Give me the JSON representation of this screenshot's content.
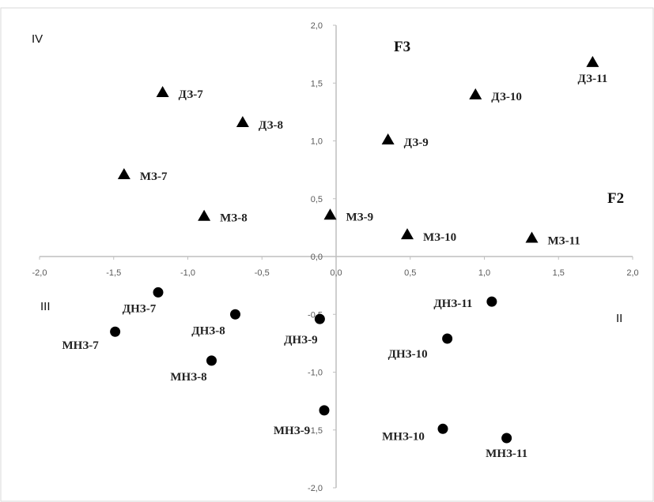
{
  "chart_data": {
    "type": "scatter",
    "title": "",
    "xlim": [
      -2.0,
      2.0
    ],
    "ylim": [
      -2.0,
      2.0
    ],
    "x_ticks": [
      "-2,0",
      "-1,5",
      "-1,0",
      "-0,5",
      "0,0",
      "0,5",
      "1,0",
      "1,5",
      "2,0"
    ],
    "y_ticks": [
      "2,0",
      "1,5",
      "1,0",
      "0,5",
      "0,0",
      "-0,5",
      "-1,0",
      "-1,5",
      "-2,0"
    ],
    "axis_names": {
      "x": "F2",
      "y": "F3"
    },
    "quadrants": [
      "IV",
      "III",
      "II"
    ],
    "grid": false,
    "colors": {
      "marker": "#000000",
      "axis": "#bfbfbf",
      "tick_text": "#595959",
      "frame": "#d9d9d9"
    },
    "series": [
      {
        "marker": "triangle",
        "points": [
          {
            "label": "ДЗ-7",
            "x": -1.17,
            "y": 1.42
          },
          {
            "label": "ДЗ-8",
            "x": -0.63,
            "y": 1.16
          },
          {
            "label": "ДЗ-9",
            "x": 0.35,
            "y": 1.01
          },
          {
            "label": "ДЗ-10",
            "x": 0.94,
            "y": 1.4
          },
          {
            "label": "ДЗ-11",
            "x": 1.73,
            "y": 1.68
          },
          {
            "label": "МЗ-7",
            "x": -1.43,
            "y": 0.71
          },
          {
            "label": "МЗ-8",
            "x": -0.89,
            "y": 0.35
          },
          {
            "label": "МЗ-9",
            "x": -0.04,
            "y": 0.36
          },
          {
            "label": "МЗ-10",
            "x": 0.48,
            "y": 0.19
          },
          {
            "label": "МЗ-11",
            "x": 1.32,
            "y": 0.16
          }
        ]
      },
      {
        "marker": "circle",
        "points": [
          {
            "label": "ДНЗ-7",
            "x": -1.2,
            "y": -0.31
          },
          {
            "label": "ДНЗ-8",
            "x": -0.68,
            "y": -0.5
          },
          {
            "label": "ДНЗ-9",
            "x": -0.11,
            "y": -0.54
          },
          {
            "label": "ДНЗ-10",
            "x": 0.75,
            "y": -0.71
          },
          {
            "label": "ДНЗ-11",
            "x": 1.05,
            "y": -0.39
          },
          {
            "label": "МНЗ-7",
            "x": -1.49,
            "y": -0.65
          },
          {
            "label": "МНЗ-8",
            "x": -0.84,
            "y": -0.9
          },
          {
            "label": "МНЗ-9",
            "x": -0.08,
            "y": -1.33
          },
          {
            "label": "МНЗ-10",
            "x": 0.72,
            "y": -1.49
          },
          {
            "label": "МНЗ-11",
            "x": 1.15,
            "y": -1.57
          }
        ]
      }
    ]
  }
}
